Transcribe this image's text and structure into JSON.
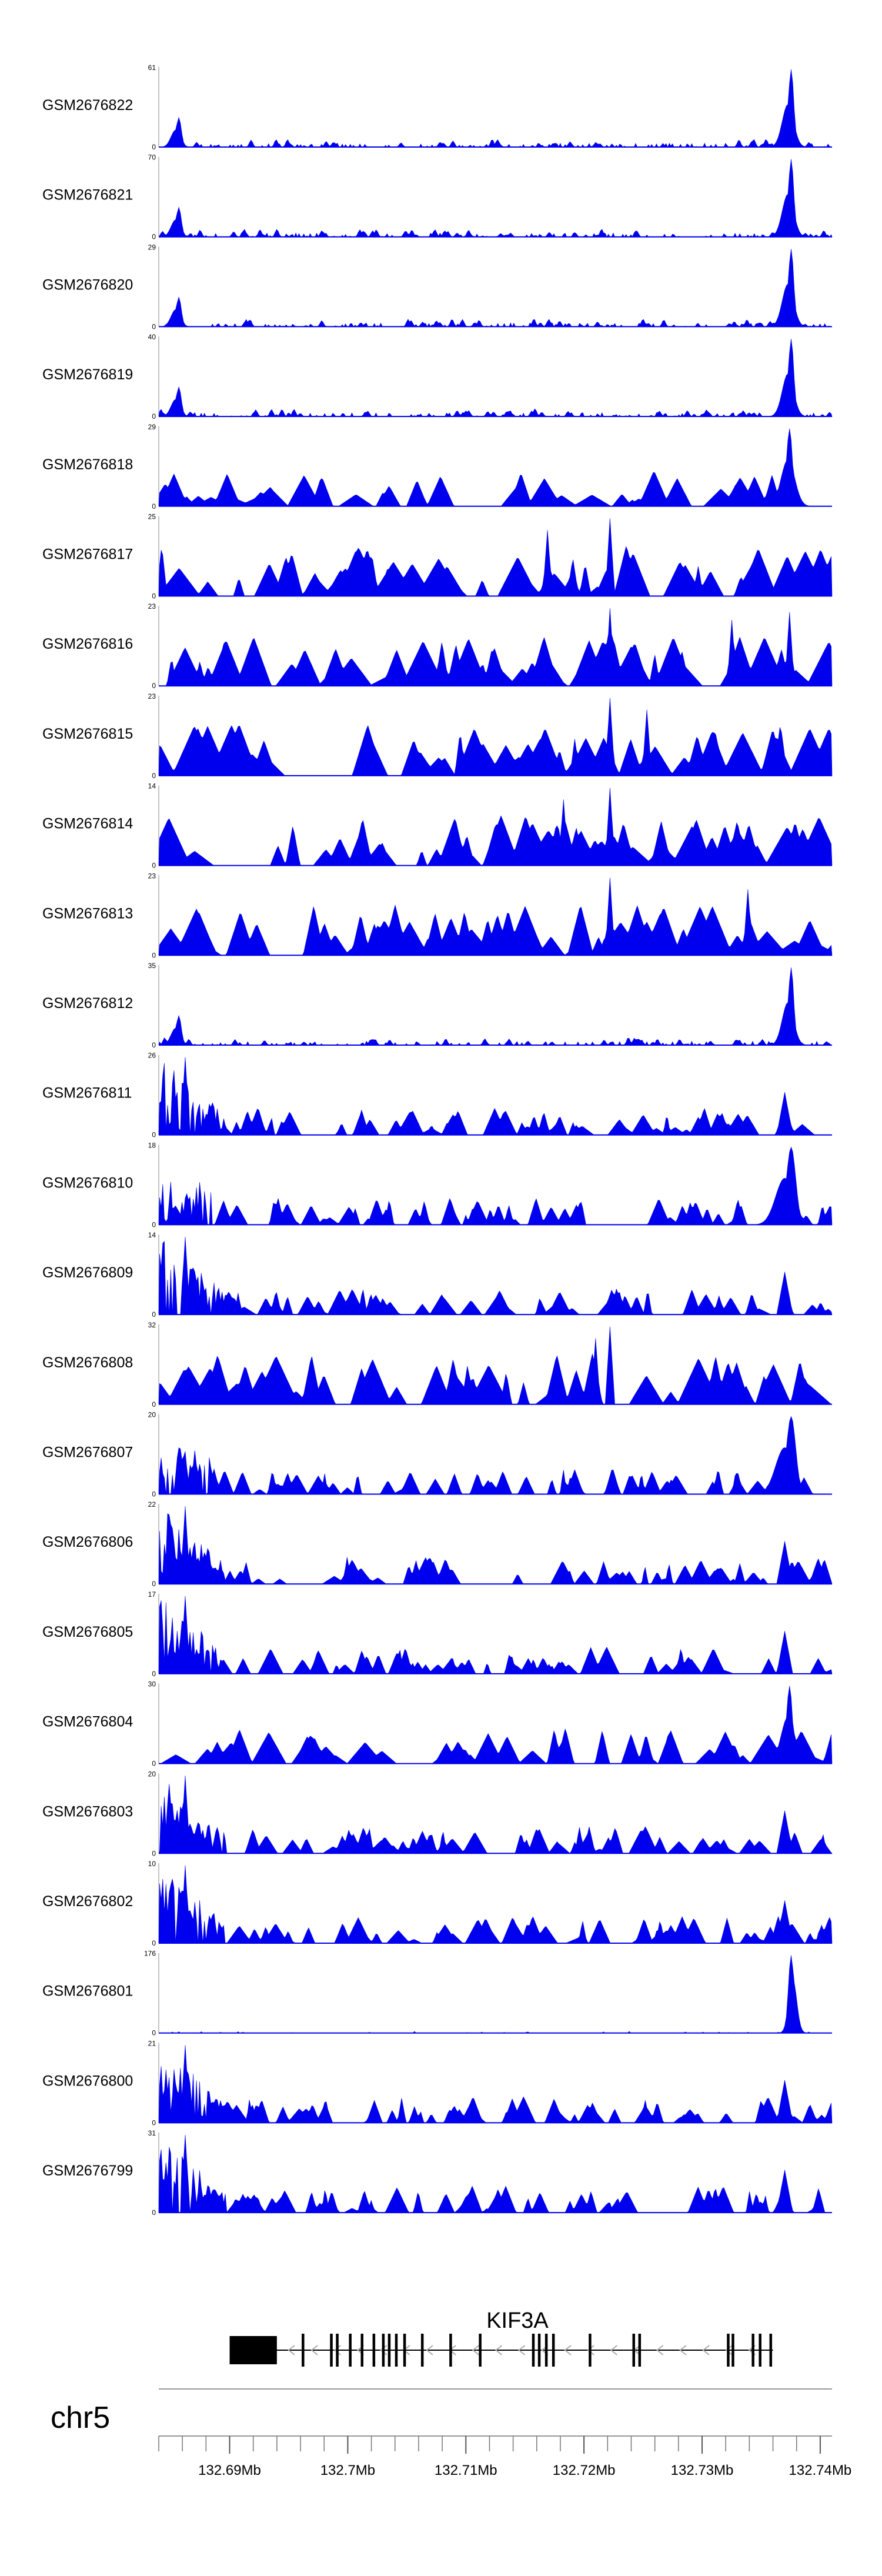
{
  "chart_data": {
    "type": "area",
    "title": "",
    "chromosome": "chr5",
    "x_range_mb": [
      132.684,
      132.741
    ],
    "colors": {
      "signal": "#0000ee",
      "axis": "#888888",
      "gene": "#000000",
      "intron_arrow": "#aaaaaa"
    },
    "tracks": [
      {
        "name": "GSM2676822",
        "ymax": 61,
        "profile": "peak_right"
      },
      {
        "name": "GSM2676821",
        "ymax": 70,
        "profile": "peak_right"
      },
      {
        "name": "GSM2676820",
        "ymax": 29,
        "profile": "peak_right"
      },
      {
        "name": "GSM2676819",
        "ymax": 40,
        "profile": "peak_right"
      },
      {
        "name": "GSM2676818",
        "ymax": 29,
        "profile": "peak_right_sparse"
      },
      {
        "name": "GSM2676817",
        "ymax": 25,
        "profile": "sparse"
      },
      {
        "name": "GSM2676816",
        "ymax": 23,
        "profile": "sparse_right"
      },
      {
        "name": "GSM2676815",
        "ymax": 23,
        "profile": "sparse"
      },
      {
        "name": "GSM2676814",
        "ymax": 14,
        "profile": "sparse"
      },
      {
        "name": "GSM2676813",
        "ymax": 23,
        "profile": "sparse"
      },
      {
        "name": "GSM2676812",
        "ymax": 35,
        "profile": "peak_right"
      },
      {
        "name": "GSM2676811",
        "ymax": 26,
        "profile": "left_heavy"
      },
      {
        "name": "GSM2676810",
        "ymax": 18,
        "profile": "both"
      },
      {
        "name": "GSM2676809",
        "ymax": 14,
        "profile": "left_heavy"
      },
      {
        "name": "GSM2676808",
        "ymax": 32,
        "profile": "sparse"
      },
      {
        "name": "GSM2676807",
        "ymax": 20,
        "profile": "both"
      },
      {
        "name": "GSM2676806",
        "ymax": 22,
        "profile": "left_heavy"
      },
      {
        "name": "GSM2676805",
        "ymax": 17,
        "profile": "left_heavy"
      },
      {
        "name": "GSM2676804",
        "ymax": 30,
        "profile": "peak_right_dense"
      },
      {
        "name": "GSM2676803",
        "ymax": 20,
        "profile": "left_heavy"
      },
      {
        "name": "GSM2676802",
        "ymax": 10,
        "profile": "left_heavy"
      },
      {
        "name": "GSM2676801",
        "ymax": 176,
        "profile": "single_peak"
      },
      {
        "name": "GSM2676800",
        "ymax": 21,
        "profile": "left_heavy"
      },
      {
        "name": "GSM2676799",
        "ymax": 31,
        "profile": "left_heavy"
      }
    ],
    "gene": {
      "name": "KIF3A",
      "strand": "-",
      "start_mb": 132.69,
      "end_mb": 132.736,
      "utr_mb": [
        132.69,
        132.694
      ],
      "exons_mb": [
        132.6962,
        132.6986,
        132.6991,
        132.7002,
        132.7012,
        132.7022,
        132.703,
        132.7035,
        132.7041,
        132.7048,
        132.7063,
        132.7087,
        132.7112,
        132.7157,
        132.7162,
        132.7168,
        132.7174,
        132.7205,
        132.7242,
        132.7247,
        132.7322,
        132.7326,
        132.7343,
        132.7349,
        132.7358
      ]
    },
    "axis_ticks_mb": [
      132.69,
      132.7,
      132.71,
      132.72,
      132.73,
      132.74
    ],
    "axis_tick_labels": [
      "132.69Mb",
      "132.7Mb",
      "132.71Mb",
      "132.72Mb",
      "132.73Mb",
      "132.74Mb"
    ],
    "ymin_label": "0"
  }
}
